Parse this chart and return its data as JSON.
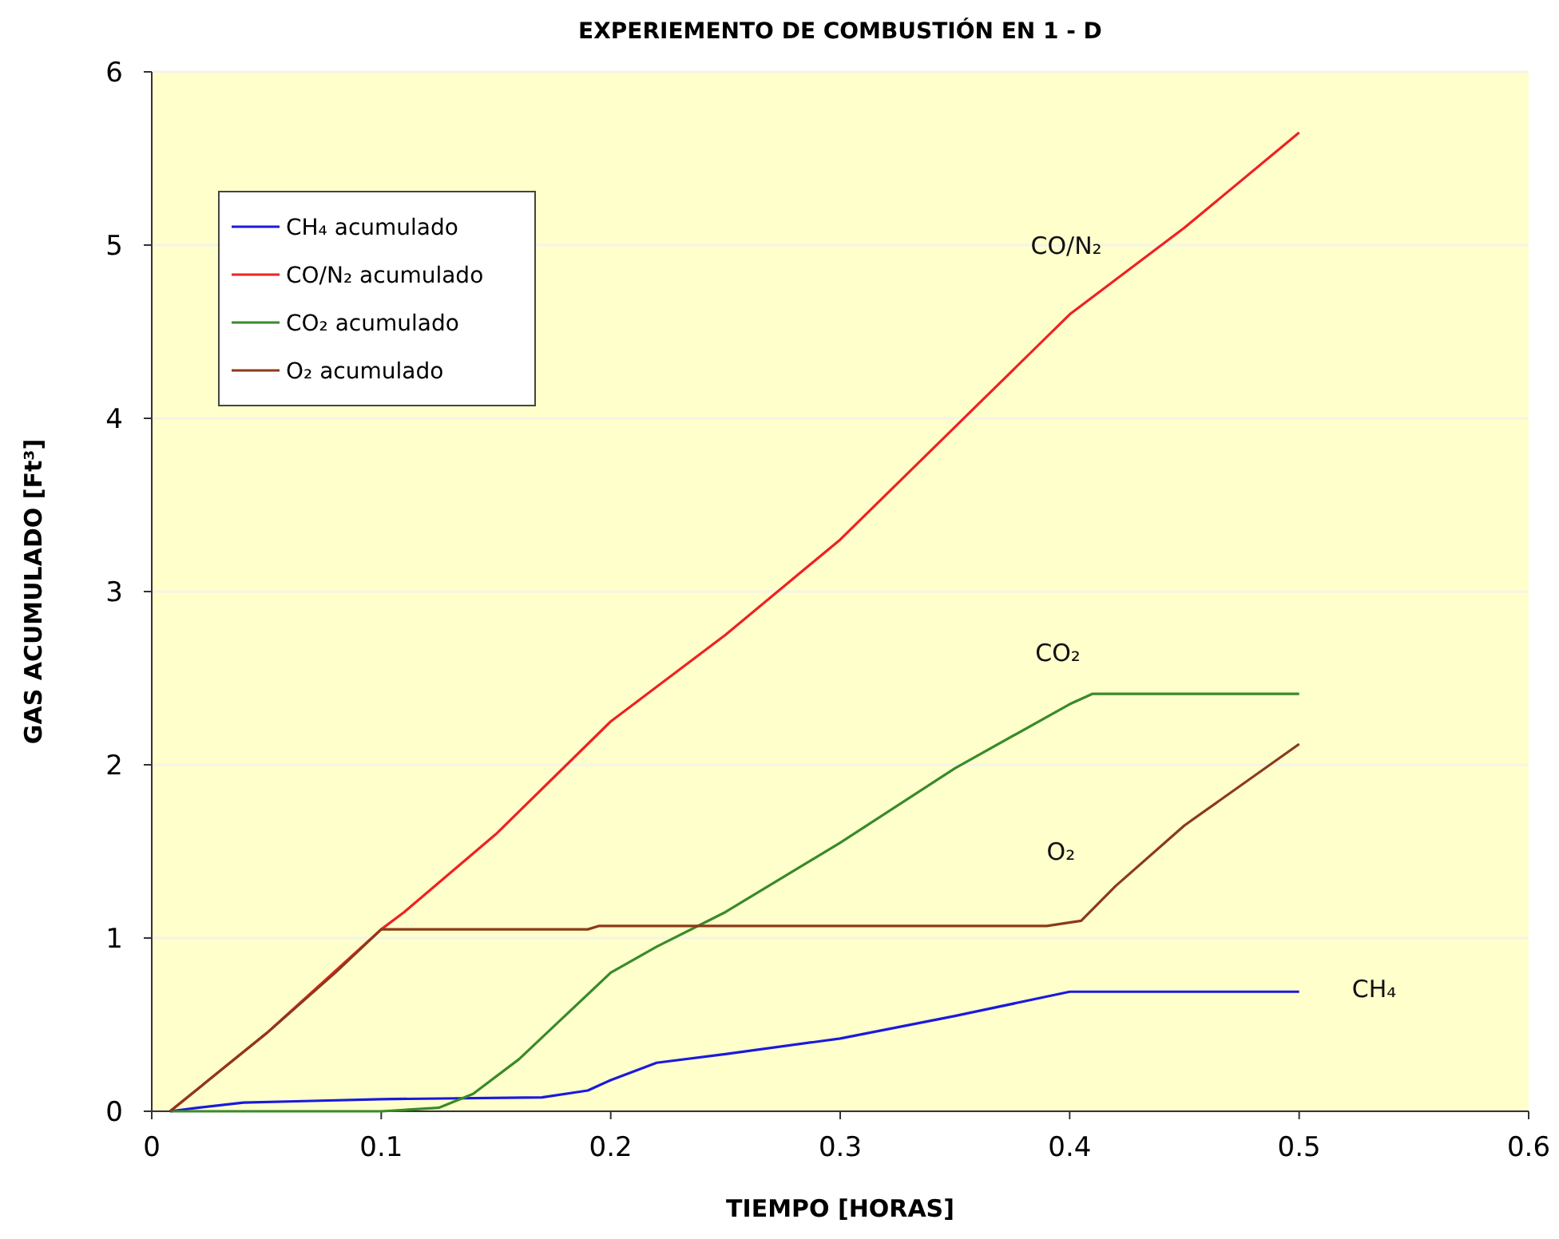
{
  "chart_data": {
    "type": "line",
    "title": "EXPERIEMENTO DE COMBUSTIÓN EN 1 - D",
    "xlabel": "TIEMPO [HORAS]",
    "ylabel": "GAS ACUMULADO [Ft³]",
    "xlim": [
      0,
      0.6
    ],
    "xticks": [
      0,
      0.1,
      0.2,
      0.3,
      0.4,
      0.5,
      0.6
    ],
    "ylim": [
      0,
      6
    ],
    "yticks": [
      0,
      1,
      2,
      3,
      4,
      5,
      6
    ],
    "grid": "y",
    "legend": "top left",
    "marker": "none",
    "line_style": "solid",
    "series": [
      {
        "name": "CH₄ acumulado",
        "color": "#1a1adc",
        "x": [
          0.008,
          0.02,
          0.04,
          0.07,
          0.1,
          0.17,
          0.19,
          0.2,
          0.22,
          0.25,
          0.3,
          0.35,
          0.4,
          0.5
        ],
        "values": [
          0,
          0.02,
          0.05,
          0.06,
          0.07,
          0.08,
          0.12,
          0.18,
          0.28,
          0.33,
          0.42,
          0.55,
          0.69,
          0.69
        ]
      },
      {
        "name": "CO/N₂ acumulado",
        "color": "#ee2222",
        "x": [
          0.008,
          0.05,
          0.1,
          0.11,
          0.15,
          0.2,
          0.25,
          0.3,
          0.35,
          0.4,
          0.45,
          0.5
        ],
        "values": [
          0,
          0.45,
          1.05,
          1.15,
          1.6,
          2.25,
          2.75,
          3.3,
          3.95,
          4.6,
          5.1,
          5.65
        ]
      },
      {
        "name": "CO₂ acumulado",
        "color": "#3a8a2a",
        "x": [
          0.008,
          0.1,
          0.125,
          0.14,
          0.16,
          0.18,
          0.2,
          0.22,
          0.25,
          0.3,
          0.35,
          0.4,
          0.41,
          0.5
        ],
        "values": [
          0,
          0,
          0.02,
          0.1,
          0.3,
          0.55,
          0.8,
          0.95,
          1.15,
          1.55,
          1.98,
          2.35,
          2.41,
          2.41
        ]
      },
      {
        "name": "O₂ acumulado",
        "color": "#8b3a1a",
        "x": [
          0.008,
          0.05,
          0.08,
          0.1,
          0.19,
          0.195,
          0.39,
          0.405,
          0.42,
          0.45,
          0.5
        ],
        "values": [
          0,
          0.45,
          0.8,
          1.05,
          1.05,
          1.07,
          1.07,
          1.1,
          1.3,
          1.65,
          2.12
        ]
      }
    ],
    "annotations": [
      "CH₄",
      "CO/N₂",
      "CO₂",
      "O₂"
    ]
  }
}
